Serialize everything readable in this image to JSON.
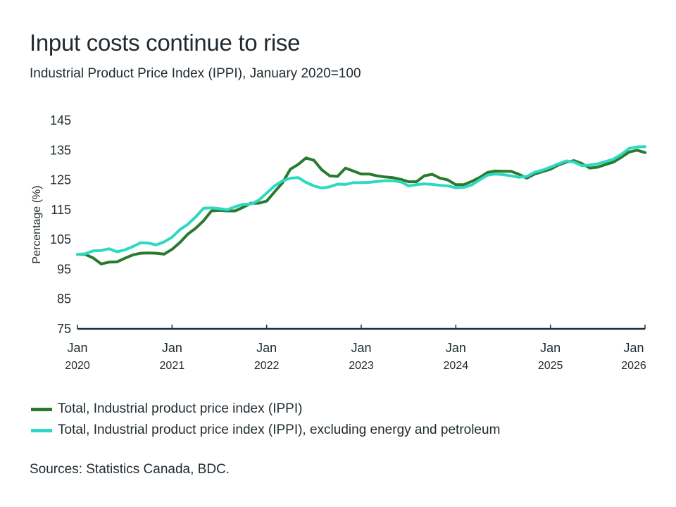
{
  "chart_data": {
    "type": "line",
    "title": "Input costs continue to rise",
    "subtitle": "Industrial Product Price Index (IPPI), January 2020=100",
    "ylabel": "Percentage (%)",
    "xlabel": "",
    "ylim": [
      75,
      145
    ],
    "yticks": [
      "75",
      "85",
      "95",
      "105",
      "115",
      "125",
      "135",
      "145"
    ],
    "xticks": [
      {
        "month": "Jan",
        "year": "2020",
        "index": 0
      },
      {
        "month": "Jan",
        "year": "2021",
        "index": 12
      },
      {
        "month": "Jan",
        "year": "2022",
        "index": 24
      },
      {
        "month": "Jan",
        "year": "2023",
        "index": 36
      },
      {
        "month": "Jan",
        "year": "2024",
        "index": 48
      },
      {
        "month": "Jan",
        "year": "2025",
        "index": 60
      },
      {
        "month": "Jan",
        "year": "2026",
        "index": 72
      }
    ],
    "x_start": "Jan 2020",
    "x_frequency": "monthly",
    "grid": false,
    "legend_position": "bottom",
    "series": [
      {
        "name": "Total, Industrial product price index (IPPI)",
        "color": "#2a7a2e",
        "values": [
          100,
          100,
          98.8,
          96.8,
          97.4,
          97.5,
          98.7,
          99.8,
          100.4,
          100.5,
          100.4,
          100.1,
          101.7,
          104,
          106.8,
          108.8,
          111.3,
          114.6,
          114.8,
          114.6,
          114.6,
          115.8,
          117.2,
          117.2,
          117.9,
          121,
          124,
          128.6,
          130.2,
          132.4,
          131.6,
          128.4,
          126.4,
          126.2,
          129,
          128,
          127,
          127,
          126.4,
          126,
          125.8,
          125.2,
          124.4,
          124.4,
          126.4,
          126.9,
          125.6,
          125,
          123.4,
          123.4,
          124.5,
          125.8,
          127.5,
          128,
          127.9,
          127.9,
          126.9,
          125.6,
          127,
          127.8,
          128.6,
          130,
          131,
          131.5,
          130.5,
          129,
          129.3,
          130.2,
          131,
          132.6,
          134.4,
          135,
          134.2
        ]
      },
      {
        "name": "Total, Industrial product price index (IPPI), excluding energy and petroleum",
        "color": "#2ed8c3",
        "values": [
          100,
          100.2,
          101.2,
          101.3,
          101.9,
          100.9,
          101.5,
          102.6,
          103.9,
          103.8,
          103.2,
          104.2,
          105.8,
          108.3,
          110.1,
          112.6,
          115.5,
          115.6,
          115.4,
          115,
          116,
          116.8,
          116.9,
          118.2,
          120.6,
          123,
          124.7,
          125.6,
          125.8,
          124.2,
          123,
          122.3,
          122.7,
          123.6,
          123.5,
          124.1,
          124.1,
          124.2,
          124.5,
          124.7,
          124.7,
          124.4,
          123,
          123.4,
          123.7,
          123.5,
          123.2,
          123,
          122.4,
          122.5,
          123.3,
          125,
          126.6,
          127,
          126.8,
          126.4,
          125.9,
          126.2,
          127.6,
          128.3,
          129.3,
          130.4,
          131.4,
          131,
          129.8,
          130,
          130.4,
          131.2,
          132,
          133.6,
          135.6,
          136.1,
          136.2
        ]
      }
    ],
    "source": "Sources: Statistics Canada, BDC."
  }
}
